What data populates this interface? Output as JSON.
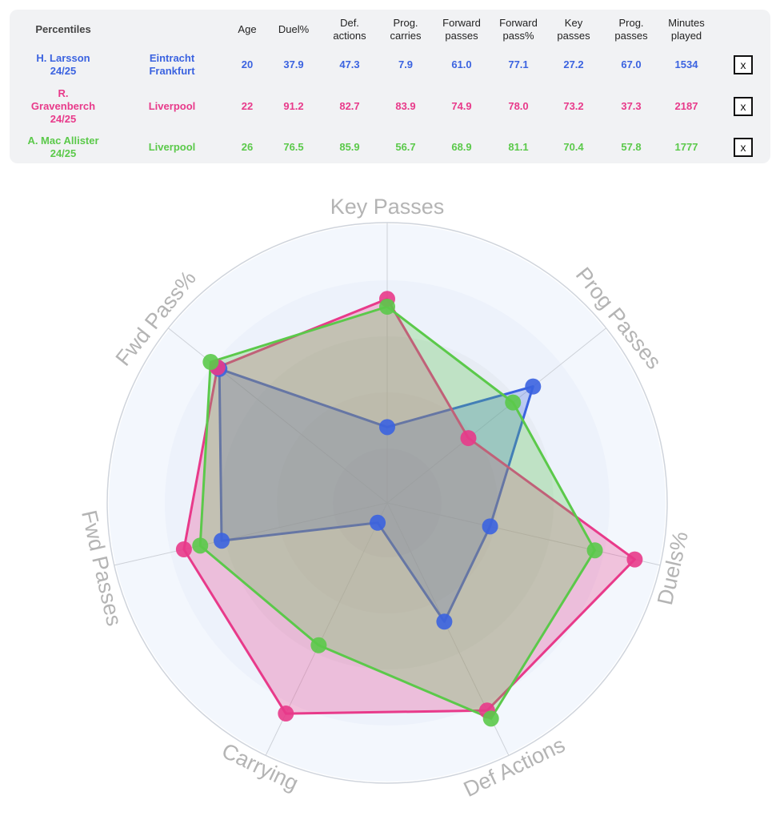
{
  "table": {
    "title": "Percentiles",
    "columns": [
      {
        "key": "age",
        "label": "Age"
      },
      {
        "key": "duel",
        "label": "Duel%"
      },
      {
        "key": "def",
        "label": "Def.\nactions"
      },
      {
        "key": "prog_carries",
        "label": "Prog.\ncarries"
      },
      {
        "key": "fwd_passes",
        "label": "Forward\npasses"
      },
      {
        "key": "fwd_pass_pct",
        "label": "Forward\npass%"
      },
      {
        "key": "key_passes",
        "label": "Key\npasses"
      },
      {
        "key": "prog_passes",
        "label": "Prog.\npasses"
      },
      {
        "key": "minutes",
        "label": "Minutes\nplayed"
      }
    ],
    "rows": [
      {
        "player": "H. Larsson\n24/25",
        "team": "Eintracht\nFrankfurt",
        "color": "#3b63e0",
        "values": [
          "20",
          "37.9",
          "47.3",
          "7.9",
          "61.0",
          "77.1",
          "27.2",
          "67.0",
          "1534"
        ],
        "close_label": "x"
      },
      {
        "player": "R.\nGravenberch\n24/25",
        "team": "Liverpool",
        "color": "#e83a8a",
        "values": [
          "22",
          "91.2",
          "82.7",
          "83.9",
          "74.9",
          "78.0",
          "73.2",
          "37.3",
          "2187"
        ],
        "close_label": "x"
      },
      {
        "player": "A. Mac Allister\n24/25",
        "team": "Liverpool",
        "color": "#5bc94a",
        "values": [
          "26",
          "76.5",
          "85.9",
          "56.7",
          "68.9",
          "81.1",
          "70.4",
          "57.8",
          "1777"
        ],
        "close_label": "x"
      }
    ]
  },
  "chart_data": {
    "type": "radar",
    "axes": [
      "Key Passes",
      "Prog Passes",
      "Duels%",
      "Def Actions",
      "Carrying",
      "Fwd Passes",
      "Fwd Pass%"
    ],
    "range": [
      0,
      100
    ],
    "series": [
      {
        "name": "H. Larsson 24/25",
        "color": "#3b63e0",
        "values": [
          27.2,
          67.0,
          37.9,
          47.3,
          7.9,
          61.0,
          77.1
        ]
      },
      {
        "name": "R. Gravenberch 24/25",
        "color": "#e83a8a",
        "values": [
          73.2,
          37.3,
          91.2,
          82.7,
          83.9,
          74.9,
          78.0
        ]
      },
      {
        "name": "A. Mac Allister 24/25",
        "color": "#5bc94a",
        "values": [
          70.4,
          57.8,
          76.5,
          85.9,
          56.7,
          68.9,
          81.1
        ]
      }
    ]
  }
}
